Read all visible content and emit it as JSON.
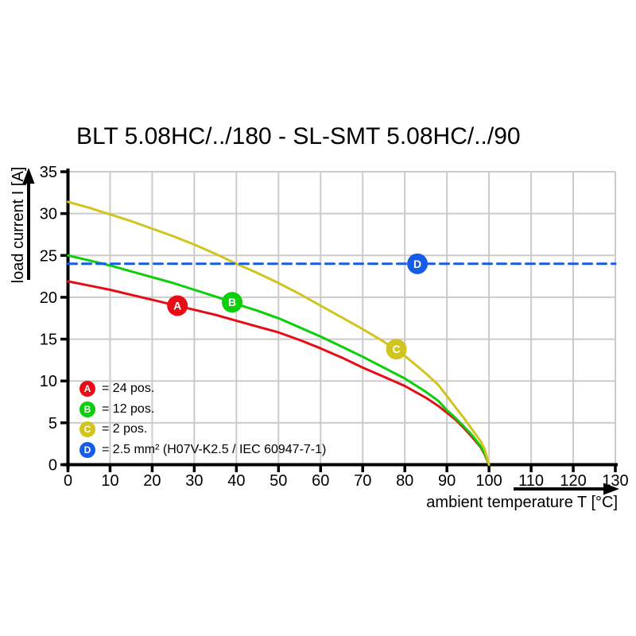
{
  "title": "BLT 5.08HC/../180 - SL-SMT 5.08HC/../90",
  "colors": {
    "red": "#e60d17",
    "green": "#0ccf0c",
    "yellow": "#d1c41f",
    "blue": "#175ce6",
    "grid": "#cbcbcb",
    "axis": "#000000"
  },
  "chart_data": {
    "type": "line",
    "title": "BLT 5.08HC/../180 - SL-SMT 5.08HC/../90",
    "xlabel": "ambient temperature T [°C]",
    "ylabel": "load current I [A]",
    "xlim": [
      0,
      130
    ],
    "ylim": [
      0,
      35
    ],
    "xticks": [
      0,
      10,
      20,
      30,
      40,
      50,
      60,
      70,
      80,
      90,
      100,
      110,
      120,
      130
    ],
    "yticks": [
      0,
      5,
      10,
      15,
      20,
      25,
      30,
      35
    ],
    "grid": true,
    "legend_position": "inside-bottom-left",
    "series": [
      {
        "name": "A",
        "label": "= 24 pos.",
        "color": "#e60d17",
        "style": "solid",
        "marker": {
          "x": 26,
          "y": 19.0
        },
        "points": [
          [
            0,
            21.9
          ],
          [
            5,
            21.4
          ],
          [
            10,
            20.9
          ],
          [
            15,
            20.3
          ],
          [
            20,
            19.7
          ],
          [
            25,
            19.1
          ],
          [
            30,
            18.5
          ],
          [
            35,
            17.9
          ],
          [
            40,
            17.2
          ],
          [
            45,
            16.5
          ],
          [
            50,
            15.8
          ],
          [
            55,
            14.9
          ],
          [
            60,
            13.9
          ],
          [
            65,
            12.8
          ],
          [
            70,
            11.6
          ],
          [
            75,
            10.5
          ],
          [
            80,
            9.4
          ],
          [
            85,
            8.0
          ],
          [
            88,
            7.0
          ],
          [
            90,
            6.2
          ],
          [
            92,
            5.4
          ],
          [
            94,
            4.4
          ],
          [
            96,
            3.3
          ],
          [
            98,
            2.1
          ],
          [
            99,
            1.2
          ],
          [
            100,
            0
          ]
        ]
      },
      {
        "name": "B",
        "label": "= 12 pos.",
        "color": "#0ccf0c",
        "style": "solid",
        "marker": {
          "x": 39,
          "y": 19.4
        },
        "points": [
          [
            0,
            25.0
          ],
          [
            5,
            24.4
          ],
          [
            10,
            23.8
          ],
          [
            15,
            23.1
          ],
          [
            20,
            22.4
          ],
          [
            25,
            21.7
          ],
          [
            30,
            20.9
          ],
          [
            35,
            20.1
          ],
          [
            40,
            19.2
          ],
          [
            45,
            18.4
          ],
          [
            50,
            17.5
          ],
          [
            55,
            16.4
          ],
          [
            60,
            15.3
          ],
          [
            65,
            14.1
          ],
          [
            70,
            12.9
          ],
          [
            75,
            11.6
          ],
          [
            80,
            10.3
          ],
          [
            85,
            8.7
          ],
          [
            88,
            7.6
          ],
          [
            90,
            6.5
          ],
          [
            92,
            5.6
          ],
          [
            94,
            4.6
          ],
          [
            96,
            3.5
          ],
          [
            98,
            2.2
          ],
          [
            99,
            1.3
          ],
          [
            100,
            0
          ]
        ]
      },
      {
        "name": "C",
        "label": "= 2 pos.",
        "color": "#d1c41f",
        "style": "solid",
        "marker": {
          "x": 78,
          "y": 13.8
        },
        "points": [
          [
            0,
            31.4
          ],
          [
            5,
            30.7
          ],
          [
            10,
            29.9
          ],
          [
            15,
            29.1
          ],
          [
            20,
            28.2
          ],
          [
            25,
            27.3
          ],
          [
            30,
            26.3
          ],
          [
            35,
            25.2
          ],
          [
            40,
            24.0
          ],
          [
            45,
            22.9
          ],
          [
            50,
            21.7
          ],
          [
            55,
            20.4
          ],
          [
            60,
            19.0
          ],
          [
            65,
            17.6
          ],
          [
            70,
            16.2
          ],
          [
            75,
            14.7
          ],
          [
            80,
            13.0
          ],
          [
            85,
            10.9
          ],
          [
            88,
            9.5
          ],
          [
            90,
            8.2
          ],
          [
            92,
            6.9
          ],
          [
            94,
            5.6
          ],
          [
            96,
            4.2
          ],
          [
            98,
            2.8
          ],
          [
            99,
            1.8
          ],
          [
            100,
            0
          ]
        ]
      },
      {
        "name": "D",
        "label": "= 2.5 mm² (H07V-K2.5 / IEC 60947-7-1)",
        "color": "#175ce6",
        "style": "dashed",
        "marker": {
          "x": 83,
          "y": 24
        },
        "points": [
          [
            0,
            24
          ],
          [
            130,
            24
          ]
        ]
      }
    ]
  }
}
